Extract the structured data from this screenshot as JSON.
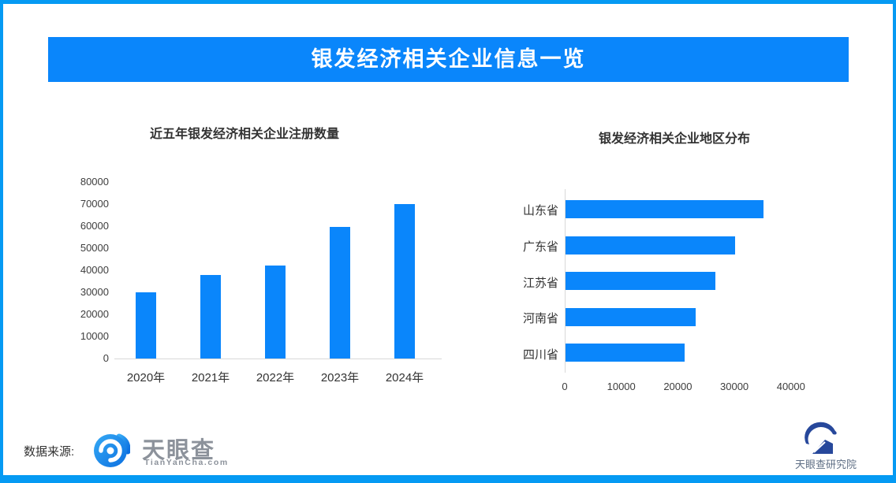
{
  "page_title": "银发经济相关企业信息一览",
  "chart_data": [
    {
      "type": "bar",
      "orientation": "vertical",
      "title": "近五年银发经济相关企业注册数量",
      "categories": [
        "2020年",
        "2021年",
        "2022年",
        "2023年",
        "2024年"
      ],
      "values": [
        30000,
        38000,
        42000,
        59500,
        70000
      ],
      "ylabel": "",
      "xlabel": "",
      "ylim": [
        0,
        80000
      ],
      "yticks": [
        0,
        10000,
        20000,
        30000,
        40000,
        50000,
        60000,
        70000,
        80000
      ],
      "grid": false,
      "legend": "none",
      "bar_color": "#0a86fb"
    },
    {
      "type": "bar",
      "orientation": "horizontal",
      "title": "银发经济相关企业地区分布",
      "categories": [
        "山东省",
        "广东省",
        "江苏省",
        "河南省",
        "四川省"
      ],
      "values": [
        35000,
        30000,
        26500,
        23000,
        21000
      ],
      "xlabel": "",
      "ylabel": "",
      "xlim": [
        0,
        45000
      ],
      "xticks": [
        0,
        10000,
        20000,
        30000,
        40000
      ],
      "grid": false,
      "legend": "none",
      "bar_color": "#0a86fb"
    }
  ],
  "footer": {
    "source_label": "数据来源:",
    "brand": {
      "name": "天眼查",
      "domain": "TianYanCha.com"
    },
    "institute": {
      "name": "天眼查研究院"
    }
  },
  "colors": {
    "accent": "#0a86fb",
    "frame_border": "#059af3",
    "axis": "#d9d9d9",
    "tick_text": "#3d3d3d",
    "logo_gray": "#8c929b",
    "logo_navy": "#27489b",
    "institute_text": "#5f6f85"
  }
}
